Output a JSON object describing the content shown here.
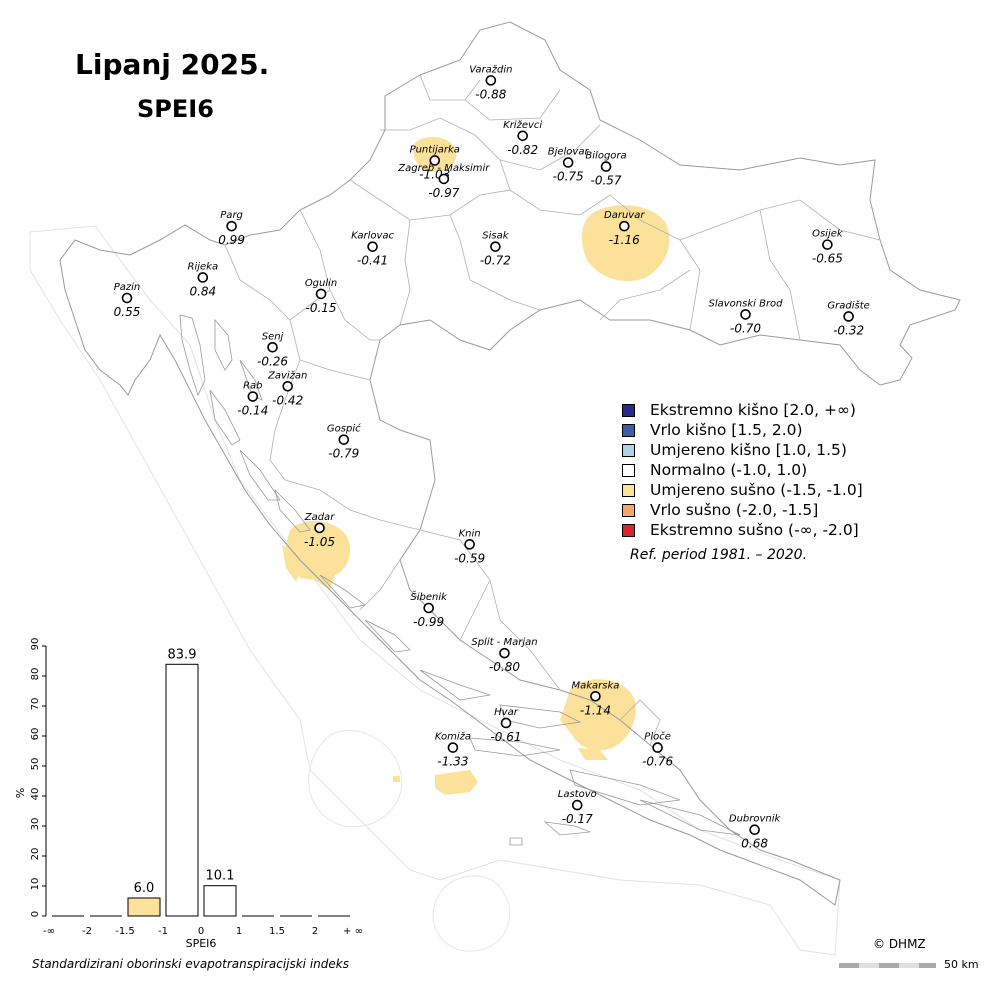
{
  "title": "Lipanj 2025.",
  "subtitle": "SPEI6",
  "colors": {
    "extreme_wet": "#2a2a8c",
    "very_wet": "#3a5fa8",
    "moderate_wet": "#a8d4e6",
    "normal": "#ffffff",
    "moderate_dry": "#fbe19a",
    "very_dry": "#f4a860",
    "extreme_dry": "#d8262a",
    "border": "#999999"
  },
  "stations": [
    {
      "name": "Varaždin",
      "value": "-0.88",
      "lon": 16.34,
      "lat": 46.3
    },
    {
      "name": "Križevci",
      "value": "-0.82",
      "lon": 16.55,
      "lat": 46.03
    },
    {
      "name": "Puntijarka",
      "value": "-1.03",
      "lon": 15.97,
      "lat": 45.91
    },
    {
      "name": "Bjelovar",
      "value": "-0.75",
      "lon": 16.85,
      "lat": 45.9
    },
    {
      "name": "Bilogora",
      "value": "-0.57",
      "lon": 17.1,
      "lat": 45.88
    },
    {
      "name": "Zagreb - Maksimir",
      "value": "-0.97",
      "lon": 16.03,
      "lat": 45.82
    },
    {
      "name": "Parg",
      "value": "0.99",
      "lon": 14.63,
      "lat": 45.59
    },
    {
      "name": "Daruvar",
      "value": "-1.16",
      "lon": 17.22,
      "lat": 45.59
    },
    {
      "name": "Karlovac",
      "value": "-0.41",
      "lon": 15.56,
      "lat": 45.49
    },
    {
      "name": "Sisak",
      "value": "-0.72",
      "lon": 16.37,
      "lat": 45.49
    },
    {
      "name": "Osijek",
      "value": "-0.65",
      "lon": 18.56,
      "lat": 45.5
    },
    {
      "name": "Rijeka",
      "value": "0.84",
      "lon": 14.44,
      "lat": 45.34
    },
    {
      "name": "Pazin",
      "value": "0.55",
      "lon": 13.94,
      "lat": 45.24
    },
    {
      "name": "Ogulin",
      "value": "-0.15",
      "lon": 15.22,
      "lat": 45.26
    },
    {
      "name": "Slavonski Brod",
      "value": "-0.70",
      "lon": 18.02,
      "lat": 45.16
    },
    {
      "name": "Gradište",
      "value": "-0.32",
      "lon": 18.7,
      "lat": 45.15
    },
    {
      "name": "Senj",
      "value": "-0.26",
      "lon": 14.9,
      "lat": 45.0
    },
    {
      "name": "Zavižan",
      "value": "-0.42",
      "lon": 15.0,
      "lat": 44.81
    },
    {
      "name": "Rab",
      "value": "-0.14",
      "lon": 14.77,
      "lat": 44.76
    },
    {
      "name": "Gospić",
      "value": "-0.79",
      "lon": 15.37,
      "lat": 44.55
    },
    {
      "name": "Zadar",
      "value": "-1.05",
      "lon": 15.21,
      "lat": 44.12
    },
    {
      "name": "Knin",
      "value": "-0.59",
      "lon": 16.2,
      "lat": 44.04
    },
    {
      "name": "Šibenik",
      "value": "-0.99",
      "lon": 15.93,
      "lat": 43.73
    },
    {
      "name": "Split - Marjan",
      "value": "-0.80",
      "lon": 16.43,
      "lat": 43.51
    },
    {
      "name": "Makarska",
      "value": "-1.14",
      "lon": 17.03,
      "lat": 43.3
    },
    {
      "name": "Hvar",
      "value": "-0.61",
      "lon": 16.44,
      "lat": 43.17
    },
    {
      "name": "Komiža",
      "value": "-1.33",
      "lon": 16.09,
      "lat": 43.05
    },
    {
      "name": "Ploče",
      "value": "-0.76",
      "lon": 17.44,
      "lat": 43.05
    },
    {
      "name": "Lastovo",
      "value": "-0.17",
      "lon": 16.91,
      "lat": 42.77
    },
    {
      "name": "Dubrovnik",
      "value": "0.68",
      "lon": 18.08,
      "lat": 42.65
    }
  ],
  "legend": [
    {
      "label": "Ekstremno kišno [2.0, +∞)",
      "color": "#2a2a8c"
    },
    {
      "label": "Vrlo kišno [1.5, 2.0)",
      "color": "#3a5fa8"
    },
    {
      "label": "Umjereno kišno [1.0, 1.5)",
      "color": "#a8d4e6"
    },
    {
      "label": "Normalno (-1.0, 1.0)",
      "color": "#ffffff"
    },
    {
      "label": "Umjereno sušno (-1.5, -1.0]",
      "color": "#fbe19a"
    },
    {
      "label": "Vrlo sušno (-2.0, -1.5]",
      "color": "#f4a860"
    },
    {
      "label": "Ekstremno sušno (-∞, -2.0]",
      "color": "#d8262a"
    }
  ],
  "ref_period": "Ref. period 1981. – 2020.",
  "copyright": "© DHMZ",
  "scale": "50 km",
  "caption": "Standardizirani oborinski evapotranspiracijski indeks",
  "chart_data": {
    "type": "bar",
    "categories": [
      "-∞",
      "-2",
      "-1.5",
      "-1",
      "0",
      "1",
      "1.5",
      "2",
      "+ ∞"
    ],
    "bins": [
      {
        "range": "(-∞, -2]",
        "value": 0,
        "color": "#ffffff"
      },
      {
        "range": "(-2, -1.5]",
        "value": 0,
        "color": "#ffffff"
      },
      {
        "range": "(-1.5, -1]",
        "value": 6.0,
        "label": "6.0",
        "color": "#fbe19a"
      },
      {
        "range": "(-1, 0]",
        "value": 83.9,
        "label": "83.9",
        "color": "#ffffff"
      },
      {
        "range": "(0, 1)",
        "value": 10.1,
        "label": "10.1",
        "color": "#ffffff"
      },
      {
        "range": "[1, 1.5)",
        "value": 0,
        "color": "#ffffff"
      },
      {
        "range": "[1.5, 2)",
        "value": 0,
        "color": "#ffffff"
      },
      {
        "range": "[2, +∞)",
        "value": 0,
        "color": "#ffffff"
      }
    ],
    "xlabel": "SPEI6",
    "ylabel": "%",
    "ylim": [
      0,
      90
    ],
    "yticks": [
      0,
      10,
      20,
      30,
      40,
      50,
      60,
      70,
      80,
      90
    ]
  }
}
